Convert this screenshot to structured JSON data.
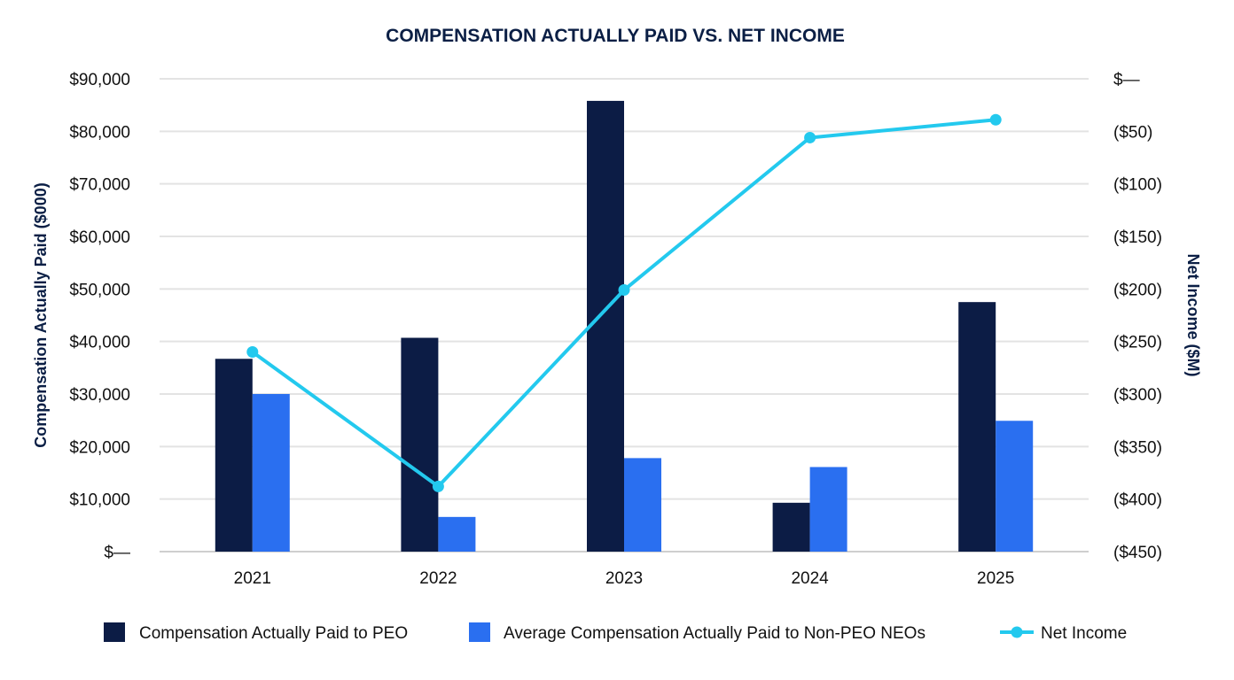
{
  "chart_data": {
    "type": "bar",
    "title": "COMPENSATION ACTUALLY PAID VS. NET INCOME",
    "categories": [
      "2021",
      "2022",
      "2023",
      "2024",
      "2025"
    ],
    "y_left": {
      "label": "Compensation Actually Paid ($000)",
      "lim": [
        0,
        90000
      ],
      "ticks": [
        0,
        10000,
        20000,
        30000,
        40000,
        50000,
        60000,
        70000,
        80000,
        90000
      ],
      "tick_labels": [
        "$—",
        "$10,000",
        "$20,000",
        "$30,000",
        "$40,000",
        "$50,000",
        "$60,000",
        "$70,000",
        "$80,000",
        "$90,000"
      ]
    },
    "y_right": {
      "label": "Net Income ($M)",
      "lim": [
        -450,
        0
      ],
      "ticks": [
        -450,
        -400,
        -350,
        -300,
        -250,
        -200,
        -150,
        -100,
        -50,
        0
      ],
      "tick_labels": [
        "($450)",
        "($400)",
        "($350)",
        "($300)",
        "($250)",
        "($200)",
        "($150)",
        "($100)",
        "($50)",
        "$—"
      ]
    },
    "series": [
      {
        "name": "Compensation Actually Paid to PEO",
        "type": "bar",
        "axis": "left",
        "color": "#0c1c45",
        "values": [
          36700,
          40700,
          85800,
          9300,
          47500
        ]
      },
      {
        "name": "Average Compensation Actually Paid to Non-PEO NEOs",
        "type": "bar",
        "axis": "left",
        "color": "#2a6ff0",
        "values": [
          30000,
          6600,
          17800,
          16100,
          24900
        ]
      },
      {
        "name": "Net Income",
        "type": "line",
        "axis": "right",
        "color": "#23c9ee",
        "values": [
          -260,
          -388,
          -201,
          -56,
          -39
        ]
      }
    ],
    "grid": true,
    "legend_position": "bottom"
  }
}
